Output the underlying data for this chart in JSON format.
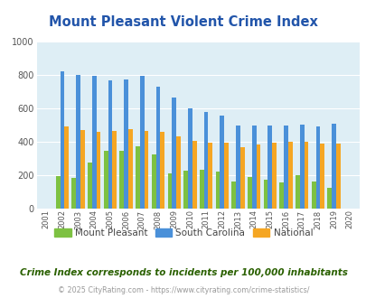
{
  "title": "Mount Pleasant Violent Crime Index",
  "years": [
    2001,
    2002,
    2003,
    2004,
    2005,
    2006,
    2007,
    2008,
    2009,
    2010,
    2011,
    2012,
    2013,
    2014,
    2015,
    2016,
    2017,
    2018,
    2019,
    2020
  ],
  "mount_pleasant": [
    0,
    195,
    183,
    278,
    347,
    348,
    375,
    325,
    213,
    228,
    232,
    220,
    163,
    190,
    175,
    155,
    198,
    163,
    123,
    0
  ],
  "south_carolina": [
    0,
    820,
    803,
    795,
    768,
    773,
    795,
    728,
    665,
    600,
    580,
    560,
    497,
    497,
    500,
    500,
    505,
    490,
    508,
    0
  ],
  "national": [
    0,
    495,
    473,
    462,
    468,
    477,
    468,
    458,
    433,
    408,
    397,
    393,
    370,
    383,
    396,
    402,
    398,
    388,
    389,
    0
  ],
  "mount_pleasant_color": "#7dc142",
  "south_carolina_color": "#4a90d9",
  "national_color": "#f5a623",
  "bg_color": "#deeef5",
  "ylim": [
    0,
    1000
  ],
  "ylabel_ticks": [
    0,
    200,
    400,
    600,
    800,
    1000
  ],
  "subtitle": "Crime Index corresponds to incidents per 100,000 inhabitants",
  "footer": "© 2025 CityRating.com - https://www.cityrating.com/crime-statistics/",
  "title_color": "#2255aa",
  "subtitle_color": "#2a6000",
  "footer_color": "#999999"
}
